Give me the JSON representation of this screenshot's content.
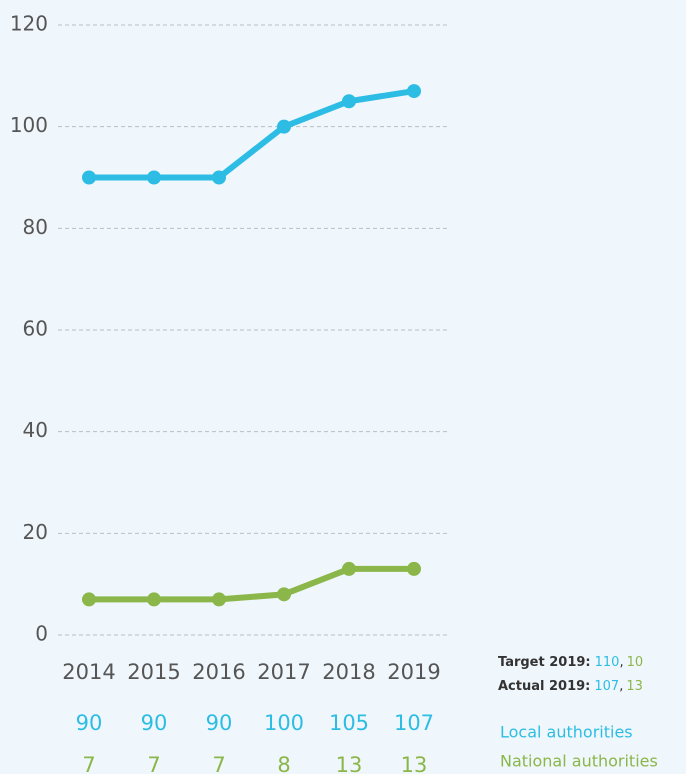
{
  "chart_data": {
    "type": "line",
    "categories": [
      "2014",
      "2015",
      "2016",
      "2017",
      "2018",
      "2019"
    ],
    "series": [
      {
        "name": "Local authorities",
        "color": "#2dbde4",
        "values": [
          90,
          90,
          90,
          100,
          105,
          107
        ]
      },
      {
        "name": "National authorities",
        "color": "#8ab64a",
        "values": [
          7,
          7,
          7,
          8,
          13,
          13
        ]
      }
    ],
    "ylim": [
      0,
      120
    ],
    "yticks": [
      0,
      20,
      40,
      60,
      80,
      100,
      120
    ],
    "grid": true,
    "annotations": [
      {
        "label": "Target 2019:",
        "values": [
          110,
          10
        ],
        "separator": ","
      },
      {
        "label": "Actual 2019:",
        "values": [
          107,
          13
        ],
        "separator": ","
      }
    ]
  }
}
